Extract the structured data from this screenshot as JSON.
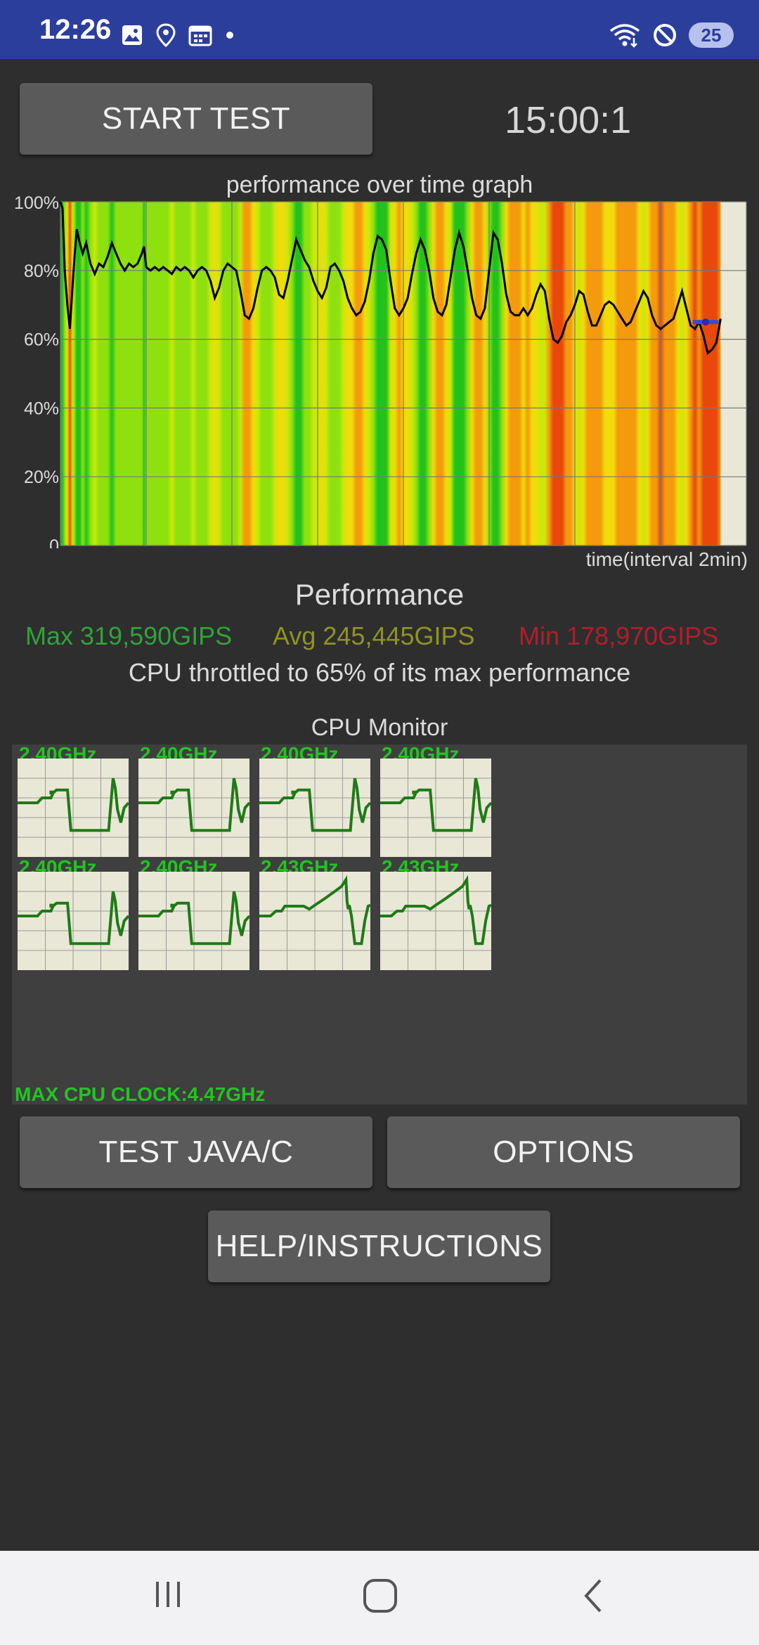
{
  "status_bar": {
    "time": "12:26",
    "left_icons": [
      "image-icon",
      "location-icon",
      "calendar-icon",
      "dot-icon"
    ],
    "right_icons": [
      "wifi-icon",
      "do-not-disturb-icon",
      "battery-icon"
    ],
    "battery": "25"
  },
  "toolbar": {
    "start_label": "START TEST",
    "timer": "15:00:1"
  },
  "graph": {
    "title": "performance over time graph",
    "x_label": "time(interval 2min)"
  },
  "chart_data": {
    "type": "line",
    "title": "performance over time graph",
    "xlabel": "time(interval 2min)",
    "ylabel": "",
    "y_ticks": [
      "100%",
      "80%",
      "60%",
      "40%",
      "20%",
      "0"
    ],
    "ylim": [
      0,
      100
    ],
    "xlim": [
      0,
      16
    ],
    "grid": true,
    "series": [
      {
        "values": [
          [
            0,
            100
          ],
          [
            0.05,
            98
          ],
          [
            0.1,
            80
          ],
          [
            0.16,
            70
          ],
          [
            0.22,
            63
          ],
          [
            0.28,
            75
          ],
          [
            0.33,
            84
          ],
          [
            0.38,
            92
          ],
          [
            0.45,
            88
          ],
          [
            0.52,
            85
          ],
          [
            0.6,
            88
          ],
          [
            0.7,
            82
          ],
          [
            0.8,
            79
          ],
          [
            0.9,
            82
          ],
          [
            1.0,
            81
          ],
          [
            1.1,
            84
          ],
          [
            1.2,
            88
          ],
          [
            1.3,
            85
          ],
          [
            1.4,
            82
          ],
          [
            1.5,
            80
          ],
          [
            1.6,
            82
          ],
          [
            1.7,
            81
          ],
          [
            1.8,
            82
          ],
          [
            1.9,
            85
          ],
          [
            1.95,
            87
          ],
          [
            2.0,
            81
          ],
          [
            2.1,
            80
          ],
          [
            2.2,
            81
          ],
          [
            2.3,
            80
          ],
          [
            2.4,
            81
          ],
          [
            2.5,
            80
          ],
          [
            2.6,
            79
          ],
          [
            2.7,
            81
          ],
          [
            2.8,
            80
          ],
          [
            2.9,
            81
          ],
          [
            3.0,
            80
          ],
          [
            3.1,
            78
          ],
          [
            3.2,
            80
          ],
          [
            3.3,
            81
          ],
          [
            3.4,
            80
          ],
          [
            3.5,
            77
          ],
          [
            3.6,
            72
          ],
          [
            3.7,
            75
          ],
          [
            3.8,
            80
          ],
          [
            3.9,
            82
          ],
          [
            4.0,
            81
          ],
          [
            4.1,
            80
          ],
          [
            4.2,
            74
          ],
          [
            4.3,
            67
          ],
          [
            4.4,
            66
          ],
          [
            4.5,
            69
          ],
          [
            4.6,
            75
          ],
          [
            4.7,
            80
          ],
          [
            4.8,
            81
          ],
          [
            4.9,
            80
          ],
          [
            5.0,
            78
          ],
          [
            5.1,
            73
          ],
          [
            5.2,
            72
          ],
          [
            5.3,
            77
          ],
          [
            5.4,
            83
          ],
          [
            5.5,
            89
          ],
          [
            5.6,
            86
          ],
          [
            5.7,
            83
          ],
          [
            5.8,
            81
          ],
          [
            5.9,
            77
          ],
          [
            6.0,
            74
          ],
          [
            6.1,
            72
          ],
          [
            6.2,
            75
          ],
          [
            6.3,
            81
          ],
          [
            6.4,
            82
          ],
          [
            6.5,
            80
          ],
          [
            6.6,
            77
          ],
          [
            6.7,
            72
          ],
          [
            6.8,
            69
          ],
          [
            6.9,
            67
          ],
          [
            7.0,
            68
          ],
          [
            7.1,
            71
          ],
          [
            7.2,
            77
          ],
          [
            7.3,
            85
          ],
          [
            7.4,
            90
          ],
          [
            7.5,
            89
          ],
          [
            7.6,
            86
          ],
          [
            7.7,
            77
          ],
          [
            7.8,
            69
          ],
          [
            7.9,
            67
          ],
          [
            8.0,
            69
          ],
          [
            8.1,
            72
          ],
          [
            8.2,
            79
          ],
          [
            8.3,
            85
          ],
          [
            8.4,
            89
          ],
          [
            8.5,
            86
          ],
          [
            8.6,
            80
          ],
          [
            8.7,
            72
          ],
          [
            8.8,
            68
          ],
          [
            8.9,
            67
          ],
          [
            9.0,
            70
          ],
          [
            9.1,
            78
          ],
          [
            9.2,
            86
          ],
          [
            9.3,
            91
          ],
          [
            9.4,
            87
          ],
          [
            9.5,
            80
          ],
          [
            9.6,
            72
          ],
          [
            9.7,
            67
          ],
          [
            9.8,
            66
          ],
          [
            9.9,
            69
          ],
          [
            10.0,
            80
          ],
          [
            10.1,
            91
          ],
          [
            10.2,
            89
          ],
          [
            10.3,
            82
          ],
          [
            10.4,
            73
          ],
          [
            10.5,
            68
          ],
          [
            10.6,
            67
          ],
          [
            10.7,
            67
          ],
          [
            10.8,
            69
          ],
          [
            10.9,
            67
          ],
          [
            11.0,
            69
          ],
          [
            11.1,
            73
          ],
          [
            11.2,
            76
          ],
          [
            11.3,
            74
          ],
          [
            11.4,
            66
          ],
          [
            11.5,
            60
          ],
          [
            11.6,
            59
          ],
          [
            11.7,
            61
          ],
          [
            11.8,
            65
          ],
          [
            11.9,
            67
          ],
          [
            12.0,
            70
          ],
          [
            12.1,
            74
          ],
          [
            12.2,
            73
          ],
          [
            12.3,
            68
          ],
          [
            12.4,
            64
          ],
          [
            12.5,
            64
          ],
          [
            12.6,
            67
          ],
          [
            12.7,
            70
          ],
          [
            12.8,
            71
          ],
          [
            12.9,
            70
          ],
          [
            13.0,
            68
          ],
          [
            13.1,
            66
          ],
          [
            13.2,
            64
          ],
          [
            13.3,
            65
          ],
          [
            13.4,
            68
          ],
          [
            13.5,
            71
          ],
          [
            13.6,
            74
          ],
          [
            13.7,
            72
          ],
          [
            13.8,
            67
          ],
          [
            13.9,
            64
          ],
          [
            14.0,
            63
          ],
          [
            14.1,
            64
          ],
          [
            14.2,
            65
          ],
          [
            14.3,
            66
          ],
          [
            14.4,
            70
          ],
          [
            14.5,
            74
          ],
          [
            14.6,
            69
          ],
          [
            14.7,
            64
          ],
          [
            14.8,
            63
          ],
          [
            14.9,
            65
          ],
          [
            15.0,
            61
          ],
          [
            15.1,
            56
          ],
          [
            15.2,
            57
          ],
          [
            15.3,
            59
          ],
          [
            15.4,
            66
          ]
        ]
      }
    ],
    "current_marker": [
      [
        14.75,
        65
      ],
      [
        15.35,
        65
      ]
    ]
  },
  "performance": {
    "title": "Performance",
    "max": "Max 319,590GIPS",
    "avg": "Avg 245,445GIPS",
    "min": "Min 178,970GIPS",
    "throttle": "CPU throttled to 65% of its max performance"
  },
  "cpu_monitor": {
    "title": "CPU Monitor",
    "cores": [
      {
        "freq": "2.40GHz",
        "pattern": "A"
      },
      {
        "freq": "2.40GHz",
        "pattern": "A"
      },
      {
        "freq": "2.40GHz",
        "pattern": "A"
      },
      {
        "freq": "2.40GHz",
        "pattern": "A"
      },
      {
        "freq": "2.40GHz",
        "pattern": "A"
      },
      {
        "freq": "2.40GHz",
        "pattern": "A"
      },
      {
        "freq": "2.43GHz",
        "pattern": "B"
      },
      {
        "freq": "2.43GHz",
        "pattern": "B"
      }
    ],
    "max_clock": "MAX CPU CLOCK:4.47GHz"
  },
  "buttons": {
    "java": "TEST JAVA/C",
    "options": "OPTIONS",
    "help": "HELP/INSTRUCTIONS"
  },
  "nav_bar": {
    "icons": [
      "recents-icon",
      "home-icon",
      "back-icon"
    ]
  }
}
